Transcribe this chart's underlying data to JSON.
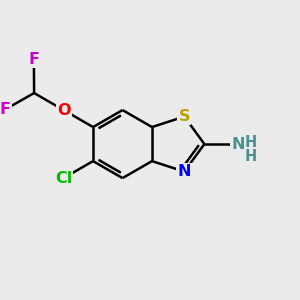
{
  "background_color": "#ebebeb",
  "bond_color": "#000000",
  "bond_width": 1.8,
  "atoms": {
    "S": {
      "color": "#b8a000"
    },
    "N": {
      "color": "#0000ff"
    },
    "O": {
      "color": "#ff0000"
    },
    "F": {
      "color": "#cc00cc"
    },
    "Cl": {
      "color": "#00bb00"
    },
    "NH": {
      "color": "#4a9090"
    },
    "H": {
      "color": "#4a9090"
    }
  },
  "figsize": [
    3.0,
    3.0
  ],
  "dpi": 100
}
